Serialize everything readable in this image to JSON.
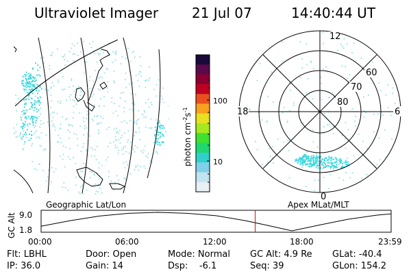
{
  "header": {
    "instrument": "Ultraviolet Imager",
    "date": "21 Jul 07",
    "time": "14:40:44 UT"
  },
  "colorbar": {
    "label": "photon cm",
    "label_sup1": "-2",
    "label_s": "s",
    "label_sup2": "-1",
    "ticks": [
      "100",
      "10"
    ],
    "colors": [
      "#1a0a3a",
      "#5a0a4a",
      "#8a0030",
      "#c00020",
      "#e85020",
      "#f8a020",
      "#e8e020",
      "#a8e820",
      "#40e030",
      "#20d870",
      "#30d0c8",
      "#80d0e8",
      "#c0e4f0",
      "#e8f0f4"
    ]
  },
  "left_panel": {
    "label": "Geographic Lat/Lon"
  },
  "right_panel": {
    "label": "Apex  MLat/MLT",
    "mlt_labels": {
      "top": "12",
      "left": "18",
      "right": "6",
      "bottom": "0"
    },
    "mlat_labels": [
      "60",
      "70",
      "80"
    ]
  },
  "altitude_plot": {
    "ylabel": "GC Alt",
    "yticks": [
      "9.0",
      "1.8"
    ],
    "xticks": [
      "00:00",
      "06:00",
      "12:00",
      "18:00",
      "23:59"
    ],
    "marker_time_hours": 14.68,
    "marker_color": "#e00000"
  },
  "status": {
    "flt": "Flt: LBHL",
    "door": "Door: Open",
    "mode": "Mode: Normal",
    "gc_alt": "GC Alt: 4.9 Re",
    "glat": "GLat: -40.4",
    "ip": "IP: 36.0",
    "gain": "Gain: 14",
    "dsp": "Dsp:    -6.1",
    "seq": "Seq: 39",
    "glon": "GLon: 154.2"
  },
  "colors": {
    "aurora": "#40d8e0",
    "aurora_light": "#a8e4ec"
  }
}
